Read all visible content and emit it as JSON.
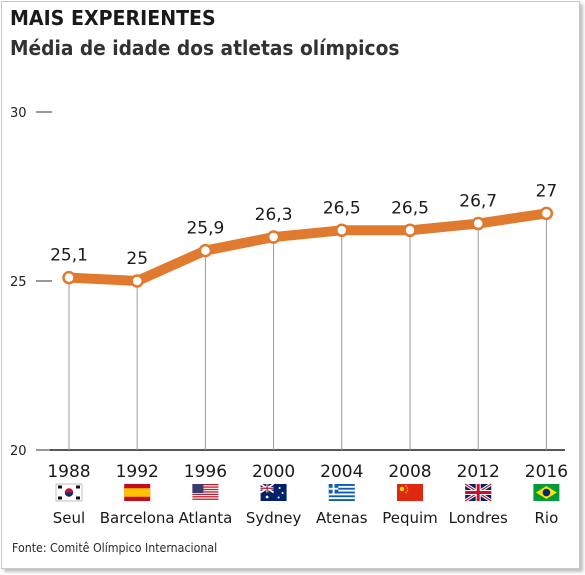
{
  "header": {
    "title": "MAIS EXPERIENTES",
    "subtitle": "Média de idade dos atletas olímpicos"
  },
  "footer": {
    "source": "Fonte: Comitê Olímpico Internacional"
  },
  "colors": {
    "line": "#e07a2f",
    "axis": "#9a9a9a"
  },
  "chart_data": {
    "type": "line",
    "title": "MAIS EXPERIENTES",
    "subtitle": "Média de idade dos atletas olímpicos",
    "x": [
      "1988",
      "1992",
      "1996",
      "2000",
      "2004",
      "2008",
      "2012",
      "2016"
    ],
    "cities": [
      "Seul",
      "Barcelona",
      "Atlanta",
      "Sydney",
      "Atenas",
      "Pequim",
      "Londres",
      "Rio"
    ],
    "flags": [
      "south-korea-flag",
      "spain-flag",
      "usa-flag",
      "australia-flag",
      "greece-flag",
      "china-flag",
      "uk-flag",
      "brazil-flag"
    ],
    "series": [
      {
        "values": [
          25.1,
          25,
          25.9,
          26.3,
          26.5,
          26.5,
          26.7,
          27
        ]
      }
    ],
    "data_labels": [
      "25,1",
      "25",
      "25,9",
      "26,3",
      "26,5",
      "26,5",
      "26,7",
      "27"
    ],
    "y_ticks": [
      {
        "value": 30,
        "label": "30"
      },
      {
        "value": 25,
        "label": "25"
      },
      {
        "value": 20,
        "label": "20"
      }
    ],
    "ylim": [
      20,
      30
    ],
    "grid": false,
    "legend": "none"
  }
}
